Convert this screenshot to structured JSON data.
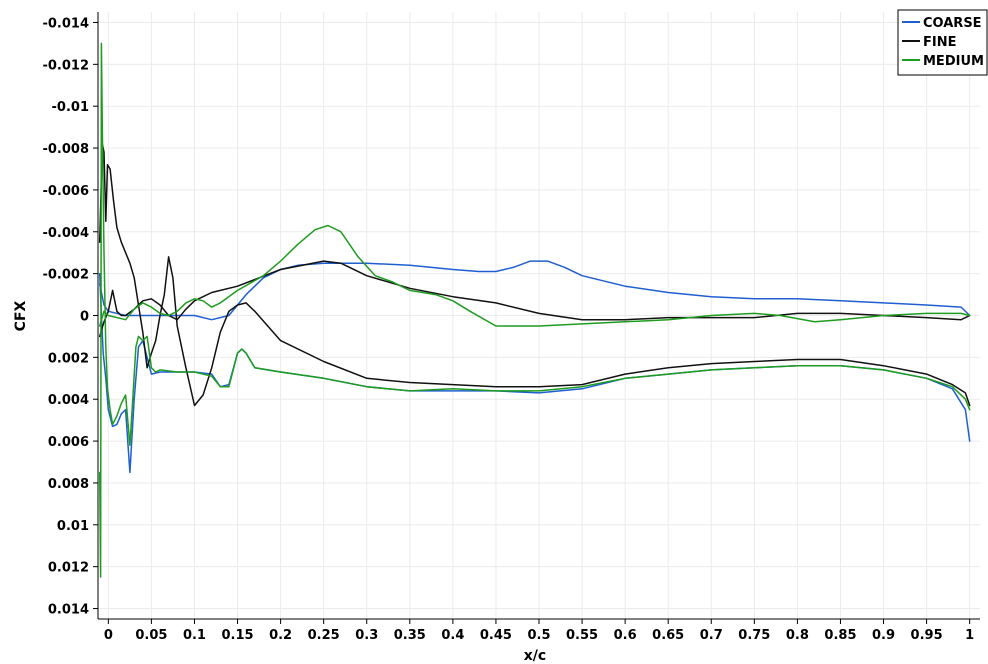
{
  "chart_data": {
    "type": "line",
    "title": "",
    "xlabel": "x/c",
    "ylabel": "CFX",
    "xlim": [
      -0.012,
      1.012
    ],
    "ylim": [
      0.0145,
      -0.0145
    ],
    "y_axis_inverted": true,
    "grid": true,
    "legend_position": "top-right",
    "x_ticks": [
      0,
      0.05,
      0.1,
      0.15,
      0.2,
      0.25,
      0.3,
      0.35,
      0.4,
      0.45,
      0.5,
      0.55,
      0.6,
      0.65,
      0.7,
      0.75,
      0.8,
      0.85,
      0.9,
      0.95,
      1
    ],
    "x_tick_labels": [
      "0",
      "0.05",
      "0.1",
      "0.15",
      "0.2",
      "0.25",
      "0.3",
      "0.35",
      "0.4",
      "0.45",
      "0.5",
      "0.55",
      "0.6",
      "0.65",
      "0.7",
      "0.75",
      "0.8",
      "0.85",
      "0.9",
      "0.95",
      "1"
    ],
    "y_ticks": [
      -0.014,
      -0.012,
      -0.01,
      -0.008,
      -0.006,
      -0.004,
      -0.002,
      0,
      0.002,
      0.004,
      0.006,
      0.008,
      0.01,
      0.012,
      0.014
    ],
    "y_tick_labels": [
      "-0.014",
      "-0.012",
      "-0.01",
      "-0.008",
      "-0.006",
      "-0.004",
      "-0.002",
      "0",
      "0.002",
      "0.004",
      "0.006",
      "0.008",
      "0.01",
      "0.012",
      "0.014"
    ],
    "series": [
      {
        "name": "COARSE",
        "color": "#1f5fd0",
        "curves": [
          [
            [
              -0.01,
              -0.002
            ],
            [
              -0.008,
              0.0
            ],
            [
              -0.006,
              0.0018
            ],
            [
              -0.003,
              0.003
            ],
            [
              0.0,
              0.0045
            ],
            [
              0.005,
              0.0053
            ],
            [
              0.01,
              0.0052
            ],
            [
              0.015,
              0.0047
            ],
            [
              0.02,
              0.0045
            ],
            [
              0.025,
              0.0075
            ],
            [
              0.03,
              0.004
            ],
            [
              0.035,
              0.0015
            ],
            [
              0.04,
              0.0012
            ],
            [
              0.05,
              0.0028
            ],
            [
              0.06,
              0.0027
            ],
            [
              0.08,
              0.0027
            ],
            [
              0.1,
              0.0027
            ],
            [
              0.12,
              0.0028
            ],
            [
              0.13,
              0.0034
            ],
            [
              0.14,
              0.0033
            ],
            [
              0.15,
              0.0018
            ],
            [
              0.155,
              0.0016
            ],
            [
              0.16,
              0.0018
            ],
            [
              0.17,
              0.0025
            ],
            [
              0.2,
              0.0027
            ],
            [
              0.25,
              0.003
            ],
            [
              0.3,
              0.0034
            ],
            [
              0.35,
              0.0036
            ],
            [
              0.4,
              0.0036
            ],
            [
              0.45,
              0.0036
            ],
            [
              0.5,
              0.0037
            ],
            [
              0.55,
              0.0035
            ],
            [
              0.6,
              0.003
            ],
            [
              0.65,
              0.0028
            ],
            [
              0.7,
              0.0026
            ],
            [
              0.75,
              0.0025
            ],
            [
              0.8,
              0.0024
            ],
            [
              0.85,
              0.0024
            ],
            [
              0.9,
              0.0026
            ],
            [
              0.95,
              0.003
            ],
            [
              0.98,
              0.0035
            ],
            [
              0.995,
              0.0045
            ],
            [
              1.0,
              0.006
            ]
          ],
          [
            [
              -0.01,
              -0.0015
            ],
            [
              -0.005,
              -0.0005
            ],
            [
              0.0,
              -0.0002
            ],
            [
              0.02,
              0.0
            ],
            [
              0.05,
              0.0
            ],
            [
              0.08,
              0.0
            ],
            [
              0.1,
              0.0
            ],
            [
              0.12,
              0.0002
            ],
            [
              0.14,
              0.0
            ],
            [
              0.16,
              -0.001
            ],
            [
              0.18,
              -0.0018
            ],
            [
              0.2,
              -0.0022
            ],
            [
              0.22,
              -0.0024
            ],
            [
              0.25,
              -0.0025
            ],
            [
              0.3,
              -0.0025
            ],
            [
              0.35,
              -0.0024
            ],
            [
              0.4,
              -0.0022
            ],
            [
              0.43,
              -0.0021
            ],
            [
              0.45,
              -0.0021
            ],
            [
              0.47,
              -0.0023
            ],
            [
              0.49,
              -0.0026
            ],
            [
              0.51,
              -0.0026
            ],
            [
              0.53,
              -0.0023
            ],
            [
              0.55,
              -0.0019
            ],
            [
              0.6,
              -0.0014
            ],
            [
              0.65,
              -0.0011
            ],
            [
              0.7,
              -0.0009
            ],
            [
              0.75,
              -0.0008
            ],
            [
              0.8,
              -0.0008
            ],
            [
              0.85,
              -0.0007
            ],
            [
              0.9,
              -0.0006
            ],
            [
              0.95,
              -0.0005
            ],
            [
              0.99,
              -0.0004
            ],
            [
              1.0,
              0.0
            ]
          ]
        ]
      },
      {
        "name": "FINE",
        "color": "#111111",
        "curves": [
          [
            [
              -0.01,
              -0.0035
            ],
            [
              -0.007,
              -0.0082
            ],
            [
              -0.005,
              -0.0078
            ],
            [
              -0.003,
              -0.0045
            ],
            [
              -0.001,
              -0.0072
            ],
            [
              0.002,
              -0.007
            ],
            [
              0.006,
              -0.0055
            ],
            [
              0.01,
              -0.0042
            ],
            [
              0.015,
              -0.0035
            ],
            [
              0.02,
              -0.003
            ],
            [
              0.025,
              -0.0025
            ],
            [
              0.03,
              -0.0018
            ],
            [
              0.035,
              -0.0005
            ],
            [
              0.04,
              0.0008
            ],
            [
              0.045,
              0.0025
            ],
            [
              0.05,
              0.0018
            ],
            [
              0.055,
              0.0012
            ],
            [
              0.06,
              0.0
            ],
            [
              0.065,
              -0.001
            ],
            [
              0.07,
              -0.0028
            ],
            [
              0.075,
              -0.0018
            ],
            [
              0.08,
              0.0005
            ],
            [
              0.09,
              0.0025
            ],
            [
              0.1,
              0.0043
            ],
            [
              0.11,
              0.0038
            ],
            [
              0.12,
              0.0025
            ],
            [
              0.13,
              0.0008
            ],
            [
              0.14,
              -0.0002
            ],
            [
              0.15,
              -0.0005
            ],
            [
              0.16,
              -0.0006
            ],
            [
              0.17,
              -0.0002
            ],
            [
              0.2,
              0.0012
            ],
            [
              0.25,
              0.0022
            ],
            [
              0.3,
              0.003
            ],
            [
              0.35,
              0.0032
            ],
            [
              0.4,
              0.0033
            ],
            [
              0.45,
              0.0034
            ],
            [
              0.5,
              0.0034
            ],
            [
              0.55,
              0.0033
            ],
            [
              0.6,
              0.0028
            ],
            [
              0.65,
              0.0025
            ],
            [
              0.7,
              0.0023
            ],
            [
              0.75,
              0.0022
            ],
            [
              0.8,
              0.0021
            ],
            [
              0.85,
              0.0021
            ],
            [
              0.9,
              0.0024
            ],
            [
              0.95,
              0.0028
            ],
            [
              0.98,
              0.0033
            ],
            [
              0.995,
              0.0037
            ],
            [
              1.0,
              0.0043
            ]
          ],
          [
            [
              -0.01,
              0.001
            ],
            [
              -0.005,
              0.0003
            ],
            [
              0.0,
              -0.0002
            ],
            [
              0.005,
              -0.0012
            ],
            [
              0.01,
              -0.0002
            ],
            [
              0.015,
              0.0
            ],
            [
              0.02,
              0.0
            ],
            [
              0.03,
              -0.0003
            ],
            [
              0.04,
              -0.0007
            ],
            [
              0.05,
              -0.0008
            ],
            [
              0.06,
              -0.0005
            ],
            [
              0.07,
              0.0
            ],
            [
              0.08,
              0.0002
            ],
            [
              0.09,
              -0.0003
            ],
            [
              0.1,
              -0.0007
            ],
            [
              0.12,
              -0.0011
            ],
            [
              0.15,
              -0.0014
            ],
            [
              0.2,
              -0.0022
            ],
            [
              0.25,
              -0.0026
            ],
            [
              0.27,
              -0.0025
            ],
            [
              0.3,
              -0.0019
            ],
            [
              0.35,
              -0.0013
            ],
            [
              0.4,
              -0.0009
            ],
            [
              0.45,
              -0.0006
            ],
            [
              0.5,
              -0.0001
            ],
            [
              0.55,
              0.0002
            ],
            [
              0.6,
              0.0002
            ],
            [
              0.65,
              0.0001
            ],
            [
              0.7,
              0.0001
            ],
            [
              0.75,
              0.0001
            ],
            [
              0.8,
              -0.0001
            ],
            [
              0.85,
              -0.0001
            ],
            [
              0.9,
              0.0
            ],
            [
              0.95,
              0.0001
            ],
            [
              0.99,
              0.0002
            ],
            [
              1.0,
              0.0
            ]
          ]
        ]
      },
      {
        "name": "MEDIUM",
        "color": "#1e9c1e",
        "curves": [
          [
            [
              -0.01,
              0.0075
            ],
            [
              -0.009,
              0.0125
            ],
            [
              -0.008,
              -0.013
            ],
            [
              -0.007,
              -0.009
            ],
            [
              -0.005,
              -0.003
            ],
            [
              -0.003,
              0.0015
            ],
            [
              -0.001,
              0.0035
            ],
            [
              0.002,
              0.0045
            ],
            [
              0.005,
              0.0052
            ],
            [
              0.01,
              0.0048
            ],
            [
              0.015,
              0.0042
            ],
            [
              0.02,
              0.0038
            ],
            [
              0.025,
              0.0062
            ],
            [
              0.028,
              0.0042
            ],
            [
              0.032,
              0.0015
            ],
            [
              0.035,
              0.001
            ],
            [
              0.04,
              0.0012
            ],
            [
              0.045,
              0.001
            ],
            [
              0.05,
              0.0025
            ],
            [
              0.055,
              0.0027
            ],
            [
              0.06,
              0.0026
            ],
            [
              0.08,
              0.0027
            ],
            [
              0.1,
              0.0027
            ],
            [
              0.12,
              0.0029
            ],
            [
              0.13,
              0.0034
            ],
            [
              0.14,
              0.0034
            ],
            [
              0.15,
              0.0018
            ],
            [
              0.155,
              0.0016
            ],
            [
              0.16,
              0.0018
            ],
            [
              0.17,
              0.0025
            ],
            [
              0.2,
              0.0027
            ],
            [
              0.25,
              0.003
            ],
            [
              0.3,
              0.0034
            ],
            [
              0.35,
              0.0036
            ],
            [
              0.4,
              0.0035
            ],
            [
              0.45,
              0.0036
            ],
            [
              0.5,
              0.0036
            ],
            [
              0.55,
              0.0034
            ],
            [
              0.6,
              0.003
            ],
            [
              0.65,
              0.0028
            ],
            [
              0.7,
              0.0026
            ],
            [
              0.75,
              0.0025
            ],
            [
              0.8,
              0.0024
            ],
            [
              0.85,
              0.0024
            ],
            [
              0.9,
              0.0026
            ],
            [
              0.95,
              0.003
            ],
            [
              0.98,
              0.0034
            ],
            [
              0.995,
              0.004
            ],
            [
              1.0,
              0.0045
            ]
          ],
          [
            [
              -0.01,
              0.0005
            ],
            [
              -0.005,
              -0.0002
            ],
            [
              0.0,
              0.0
            ],
            [
              0.02,
              0.0002
            ],
            [
              0.03,
              -0.0003
            ],
            [
              0.04,
              -0.0006
            ],
            [
              0.05,
              -0.0004
            ],
            [
              0.06,
              -0.0001
            ],
            [
              0.07,
              0.0
            ],
            [
              0.08,
              -0.0002
            ],
            [
              0.09,
              -0.0006
            ],
            [
              0.1,
              -0.0008
            ],
            [
              0.11,
              -0.0007
            ],
            [
              0.12,
              -0.0004
            ],
            [
              0.13,
              -0.0006
            ],
            [
              0.15,
              -0.0012
            ],
            [
              0.18,
              -0.0019
            ],
            [
              0.2,
              -0.0026
            ],
            [
              0.22,
              -0.0034
            ],
            [
              0.24,
              -0.0041
            ],
            [
              0.255,
              -0.0043
            ],
            [
              0.27,
              -0.004
            ],
            [
              0.29,
              -0.0028
            ],
            [
              0.31,
              -0.0019
            ],
            [
              0.33,
              -0.0016
            ],
            [
              0.35,
              -0.0012
            ],
            [
              0.38,
              -0.001
            ],
            [
              0.4,
              -0.0007
            ],
            [
              0.42,
              -0.0002
            ],
            [
              0.45,
              0.0005
            ],
            [
              0.5,
              0.0005
            ],
            [
              0.55,
              0.0004
            ],
            [
              0.6,
              0.0003
            ],
            [
              0.65,
              0.0002
            ],
            [
              0.7,
              0.0
            ],
            [
              0.75,
              -0.0001
            ],
            [
              0.78,
              0.0
            ],
            [
              0.82,
              0.0003
            ],
            [
              0.85,
              0.0002
            ],
            [
              0.9,
              0.0
            ],
            [
              0.95,
              -0.0001
            ],
            [
              0.99,
              -0.0001
            ],
            [
              1.0,
              0.0
            ]
          ]
        ]
      }
    ]
  }
}
